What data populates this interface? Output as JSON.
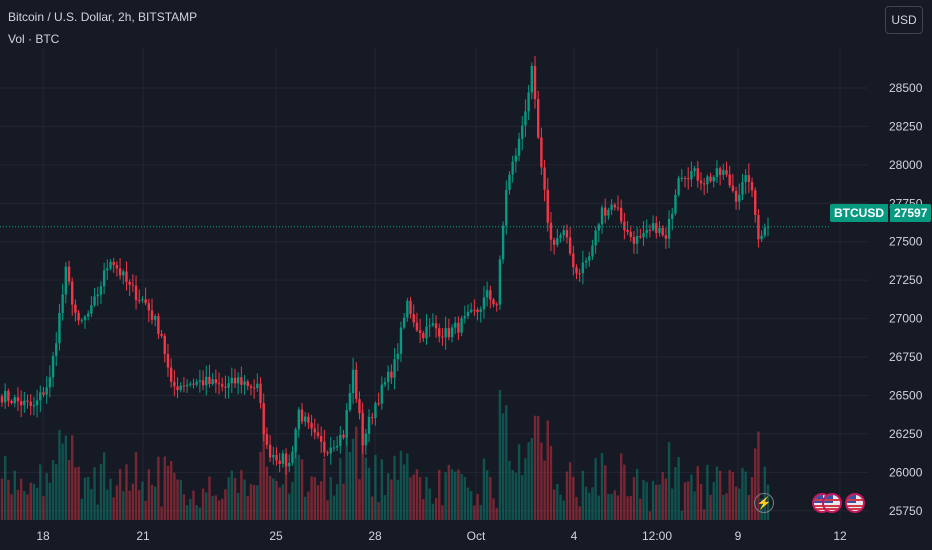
{
  "header": {
    "title": "Bitcoin / U.S. Dollar, 2h, BITSTAMP",
    "volume_label": "Vol · BTC"
  },
  "currency_button": "USD",
  "price_tag": {
    "symbol": "BTCUSD",
    "value": "27597"
  },
  "event_icons": [
    "lightning-icon",
    "us-flag-icon",
    "us-flag-icon",
    "us-flag-icon"
  ],
  "colors": {
    "up": "#089981",
    "down": "#f23645",
    "background": "#161a25",
    "grid": "#232632",
    "text": "#d1d4dc"
  },
  "chart_data": {
    "type": "candlestick",
    "title": "Bitcoin / U.S. Dollar, 2h, BITSTAMP",
    "y_axis": {
      "ylim": [
        25690,
        28760
      ],
      "ticks": [
        25750,
        26000,
        26250,
        26500,
        26750,
        27000,
        27250,
        27500,
        27750,
        28000,
        28250,
        28500
      ]
    },
    "x_axis": {
      "tick_labels": [
        "18",
        "21",
        "25",
        "28",
        "Oct",
        "4",
        "12:00",
        "9",
        "12"
      ]
    },
    "last_price": 27597,
    "grid": true,
    "anchors": [
      [
        0,
        26500
      ],
      [
        10,
        26420
      ],
      [
        15,
        26600
      ],
      [
        20,
        27300
      ],
      [
        24,
        26950
      ],
      [
        28,
        27050
      ],
      [
        34,
        27400
      ],
      [
        40,
        27200
      ],
      [
        45,
        27100
      ],
      [
        50,
        26900
      ],
      [
        53,
        26550
      ],
      [
        57,
        26580
      ],
      [
        63,
        26590
      ],
      [
        70,
        26550
      ],
      [
        74,
        26600
      ],
      [
        80,
        26550
      ],
      [
        83,
        26150
      ],
      [
        90,
        26050
      ],
      [
        93,
        26400
      ],
      [
        97,
        26250
      ],
      [
        101,
        26150
      ],
      [
        107,
        26250
      ],
      [
        110,
        26650
      ],
      [
        113,
        26200
      ],
      [
        117,
        26450
      ],
      [
        123,
        26700
      ],
      [
        127,
        27100
      ],
      [
        131,
        26900
      ],
      [
        135,
        26950
      ],
      [
        139,
        26900
      ],
      [
        143,
        26950
      ],
      [
        149,
        27050
      ],
      [
        152,
        27150
      ],
      [
        155,
        27100
      ],
      [
        158,
        27850
      ],
      [
        162,
        28150
      ],
      [
        166,
        28600
      ],
      [
        169,
        27950
      ],
      [
        172,
        27500
      ],
      [
        176,
        27550
      ],
      [
        180,
        27300
      ],
      [
        184,
        27400
      ],
      [
        188,
        27700
      ],
      [
        192,
        27750
      ],
      [
        196,
        27550
      ],
      [
        200,
        27500
      ],
      [
        205,
        27600
      ],
      [
        208,
        27500
      ],
      [
        212,
        27950
      ],
      [
        216,
        27950
      ],
      [
        220,
        27900
      ],
      [
        226,
        27950
      ],
      [
        230,
        27800
      ],
      [
        234,
        27920
      ],
      [
        237,
        27550
      ],
      [
        240,
        27597
      ]
    ],
    "volume_note": "volume bars shown at bottom, relative heights"
  }
}
